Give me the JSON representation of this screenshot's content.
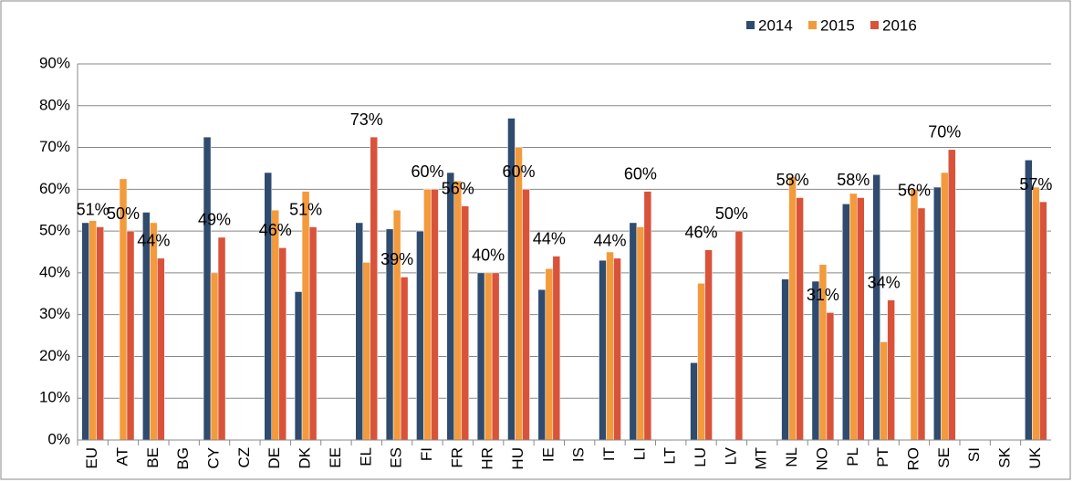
{
  "chart_data": {
    "type": "bar",
    "categories": [
      "EU",
      "AT",
      "BE",
      "BG",
      "CY",
      "CZ",
      "DE",
      "DK",
      "EE",
      "EL",
      "ES",
      "FI",
      "FR",
      "HR",
      "HU",
      "IE",
      "IS",
      "IT",
      "LI",
      "LT",
      "LU",
      "LV",
      "MT",
      "NL",
      "NO",
      "PL",
      "PT",
      "RO",
      "SE",
      "SI",
      "SK",
      "UK"
    ],
    "series": [
      {
        "name": "2014",
        "color": "#2f4b6e",
        "values": [
          52,
          null,
          54.5,
          null,
          72.5,
          null,
          64,
          35.5,
          null,
          52,
          50.5,
          50,
          64,
          40,
          77,
          36,
          null,
          43,
          52,
          null,
          18.5,
          null,
          null,
          38.5,
          38,
          56.5,
          63.5,
          null,
          60.5,
          null,
          null,
          67
        ]
      },
      {
        "name": "2015",
        "color": "#f39a3c",
        "values": [
          52.5,
          62.5,
          52,
          null,
          40,
          null,
          55,
          59.5,
          null,
          42.5,
          55,
          60,
          62,
          40,
          70,
          41,
          null,
          45,
          51,
          null,
          37.5,
          null,
          null,
          63,
          42,
          59,
          23.5,
          60,
          64,
          null,
          null,
          60.5
        ]
      },
      {
        "name": "2016",
        "color": "#d9533a",
        "values": [
          51,
          50,
          43.5,
          null,
          48.5,
          null,
          46,
          51,
          null,
          72.5,
          39,
          60,
          56,
          40,
          60,
          44,
          null,
          43.5,
          59.5,
          null,
          45.5,
          50,
          null,
          58,
          30.5,
          58,
          33.5,
          55.5,
          69.5,
          null,
          null,
          57
        ],
        "value_labels": [
          "51%",
          "50%",
          "44%",
          null,
          "49%",
          null,
          "46%",
          "51%",
          null,
          "73%",
          "39%",
          "60%",
          "56%",
          "40%",
          "60%",
          "44%",
          null,
          "44%",
          "60%",
          null,
          "46%",
          "50%",
          null,
          "58%",
          "31%",
          "58%",
          "34%",
          "56%",
          "70%",
          null,
          null,
          "57%"
        ]
      }
    ],
    "ylim": [
      0,
      90
    ],
    "yticks": [
      {
        "value": 0,
        "label": "0%"
      },
      {
        "value": 10,
        "label": "10%"
      },
      {
        "value": 20,
        "label": "20%"
      },
      {
        "value": 30,
        "label": "30%"
      },
      {
        "value": 40,
        "label": "40%"
      },
      {
        "value": 50,
        "label": "50%"
      },
      {
        "value": 60,
        "label": "60%"
      },
      {
        "value": 70,
        "label": "70%"
      },
      {
        "value": 80,
        "label": "80%"
      },
      {
        "value": 90,
        "label": "90%"
      }
    ],
    "grid": true,
    "legend": "top"
  }
}
